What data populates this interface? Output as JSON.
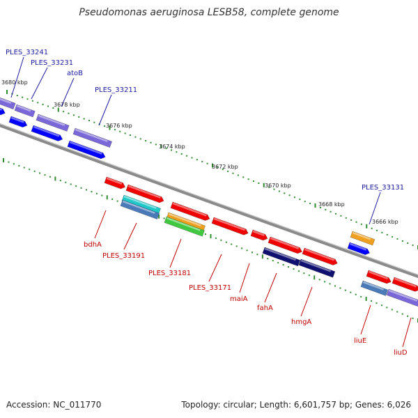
{
  "title": "Pseudomonas aeruginosa LESB58, complete genome",
  "footer": {
    "accession": "Accession: NC_011770",
    "summary": "Topology: circular; Length: 6,601,757 bp; Genes: 6,026"
  },
  "colors": {
    "backbone": "#8a8a8a",
    "tick": "#2e8b2e",
    "label_top": "#1a1aa0",
    "label_bottom": "#c00000",
    "red": "#f00000",
    "blue": "#0000ff",
    "purple": "#7a68d8",
    "navy": "#101070",
    "cyan": "#20c8c8",
    "steel": "#4a7ab8",
    "orange": "#f0a020",
    "green": "#40c840"
  },
  "ticks": [
    "3680 kbp",
    "3678 kbp",
    "3676 kbp",
    "3674 kbp",
    "3672 kbp",
    "3670 kbp",
    "3668 kbp",
    "3666 kbp"
  ],
  "genes_top": [
    {
      "label": "PLES_33241"
    },
    {
      "label": "PLES_33231"
    },
    {
      "label": "atoB"
    },
    {
      "label": "PLES_33211"
    },
    {
      "label": "PLES_33131"
    }
  ],
  "genes_bottom": [
    {
      "label": "bdhA"
    },
    {
      "label": "PLES_33191"
    },
    {
      "label": "PLES_33181"
    },
    {
      "label": "PLES_33171"
    },
    {
      "label": "maiA"
    },
    {
      "label": "fahA"
    },
    {
      "label": "hmgA"
    },
    {
      "label": "liuE"
    },
    {
      "label": "liuD"
    }
  ]
}
